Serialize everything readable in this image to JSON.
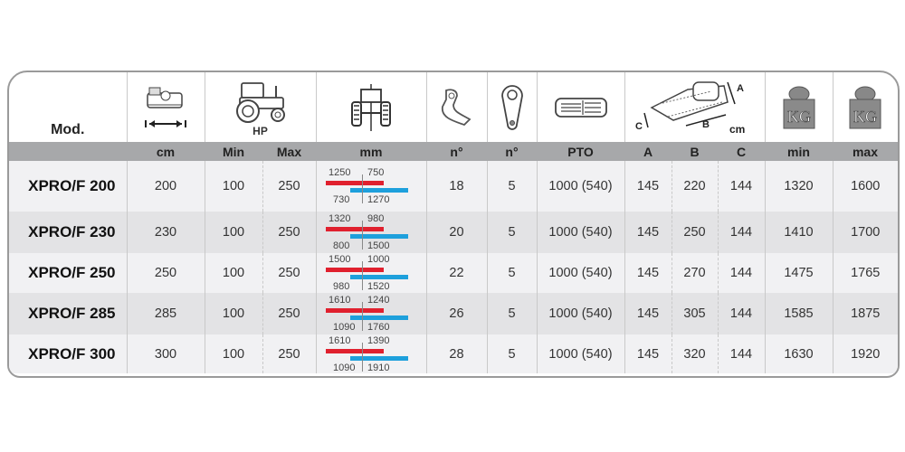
{
  "header": {
    "model_label": "Mod.",
    "hp_label": "HP",
    "icons": [
      "cutting-width-icon",
      "tractor-icon",
      "track-width-icon",
      "hammer-blade-icon",
      "belt-pulley-icon",
      "pto-shaft-icon",
      "dimensions-icon",
      "weight-kg-icon",
      "weight-kg-icon"
    ],
    "kg_text": "KG",
    "dim_letters": {
      "a": "A",
      "b": "B",
      "c": "C",
      "unit": "cm"
    }
  },
  "units": [
    "cm",
    "Min",
    "Max",
    "mm",
    "n°",
    "n°",
    "PTO",
    "A",
    "B",
    "C",
    "min",
    "max"
  ],
  "colors": {
    "red_bar": "#e0202e",
    "blue_bar": "#1ea0dc",
    "band": "#a7a8aa"
  },
  "rows": [
    {
      "model": "XPRO/F 200",
      "cm": "200",
      "hp_min": "100",
      "hp_max": "250",
      "track": {
        "red_left": "1250",
        "red_right": "750",
        "blue_left": "730",
        "blue_right": "1270"
      },
      "blades": "18",
      "belts": "5",
      "pto": "1000 (540)",
      "a": "145",
      "b": "220",
      "c": "144",
      "kg_min": "1320",
      "kg_max": "1600"
    },
    {
      "model": "XPRO/F 230",
      "cm": "230",
      "hp_min": "100",
      "hp_max": "250",
      "track": {
        "red_left": "1320",
        "red_right": "980",
        "blue_left": "800",
        "blue_right": "1500"
      },
      "blades": "20",
      "belts": "5",
      "pto": "1000 (540)",
      "a": "145",
      "b": "250",
      "c": "144",
      "kg_min": "1410",
      "kg_max": "1700"
    },
    {
      "model": "XPRO/F 250",
      "cm": "250",
      "hp_min": "100",
      "hp_max": "250",
      "track": {
        "red_left": "1500",
        "red_right": "1000",
        "blue_left": "980",
        "blue_right": "1520"
      },
      "blades": "22",
      "belts": "5",
      "pto": "1000 (540)",
      "a": "145",
      "b": "270",
      "c": "144",
      "kg_min": "1475",
      "kg_max": "1765"
    },
    {
      "model": "XPRO/F 285",
      "cm": "285",
      "hp_min": "100",
      "hp_max": "250",
      "track": {
        "red_left": "1610",
        "red_right": "1240",
        "blue_left": "1090",
        "blue_right": "1760"
      },
      "blades": "26",
      "belts": "5",
      "pto": "1000 (540)",
      "a": "145",
      "b": "305",
      "c": "144",
      "kg_min": "1585",
      "kg_max": "1875"
    },
    {
      "model": "XPRO/F 300",
      "cm": "300",
      "hp_min": "100",
      "hp_max": "250",
      "track": {
        "red_left": "1610",
        "red_right": "1390",
        "blue_left": "1090",
        "blue_right": "1910"
      },
      "blades": "28",
      "belts": "5",
      "pto": "1000 (540)",
      "a": "145",
      "b": "320",
      "c": "144",
      "kg_min": "1630",
      "kg_max": "1920"
    }
  ]
}
